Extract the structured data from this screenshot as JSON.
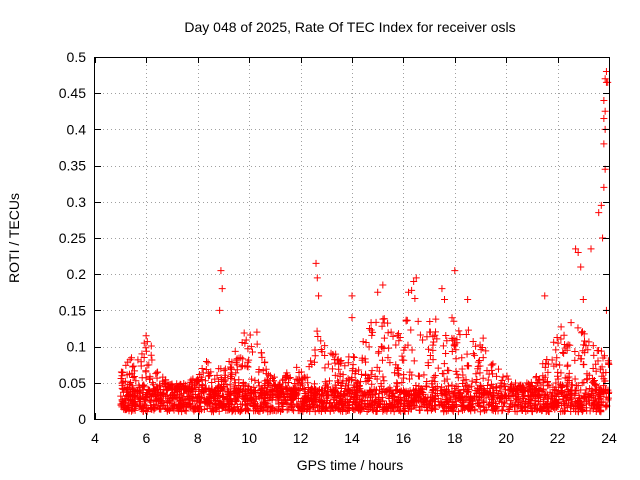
{
  "chart_data": {
    "type": "scatter",
    "title": "Day 048 of 2025, Rate Of TEC Index for receiver osls",
    "xlabel": "GPS time / hours",
    "ylabel": "ROTI / TECUs",
    "xlim": [
      4,
      24
    ],
    "ylim": [
      0,
      0.5
    ],
    "xticks": [
      4,
      6,
      8,
      10,
      12,
      14,
      16,
      18,
      20,
      22,
      24
    ],
    "yticks": [
      0,
      0.05,
      0.1,
      0.15,
      0.2,
      0.25,
      0.3,
      0.35,
      0.4,
      0.45,
      0.5
    ],
    "grid": true,
    "marker": "+",
    "color": "#ff0000",
    "data_start_hour": 5.0,
    "data_end_hour": 24.0,
    "baseline_band": [
      0.01,
      0.04
    ],
    "envelope": [
      {
        "x": 5.0,
        "y": 0.07
      },
      {
        "x": 5.5,
        "y": 0.09
      },
      {
        "x": 6.0,
        "y": 0.12
      },
      {
        "x": 6.3,
        "y": 0.09
      },
      {
        "x": 6.6,
        "y": 0.06
      },
      {
        "x": 7.0,
        "y": 0.05
      },
      {
        "x": 7.5,
        "y": 0.05
      },
      {
        "x": 8.0,
        "y": 0.06
      },
      {
        "x": 8.4,
        "y": 0.09
      },
      {
        "x": 8.9,
        "y": 0.07
      },
      {
        "x": 9.4,
        "y": 0.09
      },
      {
        "x": 9.7,
        "y": 0.12
      },
      {
        "x": 10.2,
        "y": 0.12
      },
      {
        "x": 10.7,
        "y": 0.07
      },
      {
        "x": 11.2,
        "y": 0.05
      },
      {
        "x": 11.7,
        "y": 0.08
      },
      {
        "x": 12.2,
        "y": 0.06
      },
      {
        "x": 12.6,
        "y": 0.13
      },
      {
        "x": 13.0,
        "y": 0.1
      },
      {
        "x": 13.5,
        "y": 0.09
      },
      {
        "x": 14.0,
        "y": 0.09
      },
      {
        "x": 14.5,
        "y": 0.11
      },
      {
        "x": 15.1,
        "y": 0.17
      },
      {
        "x": 15.5,
        "y": 0.12
      },
      {
        "x": 16.0,
        "y": 0.14
      },
      {
        "x": 16.3,
        "y": 0.18
      },
      {
        "x": 16.8,
        "y": 0.14
      },
      {
        "x": 17.3,
        "y": 0.14
      },
      {
        "x": 17.7,
        "y": 0.16
      },
      {
        "x": 18.2,
        "y": 0.13
      },
      {
        "x": 18.7,
        "y": 0.12
      },
      {
        "x": 19.2,
        "y": 0.11
      },
      {
        "x": 19.7,
        "y": 0.08
      },
      {
        "x": 20.2,
        "y": 0.05
      },
      {
        "x": 20.7,
        "y": 0.05
      },
      {
        "x": 21.2,
        "y": 0.06
      },
      {
        "x": 21.6,
        "y": 0.1
      },
      {
        "x": 22.1,
        "y": 0.13
      },
      {
        "x": 22.6,
        "y": 0.14
      },
      {
        "x": 23.0,
        "y": 0.12
      },
      {
        "x": 23.5,
        "y": 0.1
      },
      {
        "x": 24.0,
        "y": 0.09
      }
    ],
    "spikes": [
      {
        "x": 8.9,
        "y": 0.205
      },
      {
        "x": 8.95,
        "y": 0.18
      },
      {
        "x": 8.85,
        "y": 0.15
      },
      {
        "x": 10.3,
        "y": 0.12
      },
      {
        "x": 12.6,
        "y": 0.215
      },
      {
        "x": 12.65,
        "y": 0.195
      },
      {
        "x": 12.7,
        "y": 0.17
      },
      {
        "x": 14.0,
        "y": 0.17
      },
      {
        "x": 14.0,
        "y": 0.14
      },
      {
        "x": 15.2,
        "y": 0.185
      },
      {
        "x": 15.0,
        "y": 0.175
      },
      {
        "x": 16.4,
        "y": 0.19
      },
      {
        "x": 16.5,
        "y": 0.195
      },
      {
        "x": 16.2,
        "y": 0.175
      },
      {
        "x": 17.5,
        "y": 0.18
      },
      {
        "x": 17.6,
        "y": 0.165
      },
      {
        "x": 18.0,
        "y": 0.205
      },
      {
        "x": 18.5,
        "y": 0.165
      },
      {
        "x": 21.5,
        "y": 0.17
      },
      {
        "x": 22.7,
        "y": 0.235
      },
      {
        "x": 22.8,
        "y": 0.23
      },
      {
        "x": 22.9,
        "y": 0.21
      },
      {
        "x": 23.0,
        "y": 0.165
      },
      {
        "x": 23.3,
        "y": 0.235
      },
      {
        "x": 23.6,
        "y": 0.285
      },
      {
        "x": 23.7,
        "y": 0.295
      },
      {
        "x": 23.75,
        "y": 0.25
      },
      {
        "x": 23.8,
        "y": 0.32
      },
      {
        "x": 23.85,
        "y": 0.345
      },
      {
        "x": 23.8,
        "y": 0.38
      },
      {
        "x": 23.85,
        "y": 0.4
      },
      {
        "x": 23.8,
        "y": 0.415
      },
      {
        "x": 23.85,
        "y": 0.425
      },
      {
        "x": 23.8,
        "y": 0.44
      },
      {
        "x": 23.9,
        "y": 0.465
      },
      {
        "x": 23.85,
        "y": 0.47
      },
      {
        "x": 23.95,
        "y": 0.465
      },
      {
        "x": 23.9,
        "y": 0.48
      },
      {
        "x": 23.9,
        "y": 0.15
      }
    ]
  }
}
